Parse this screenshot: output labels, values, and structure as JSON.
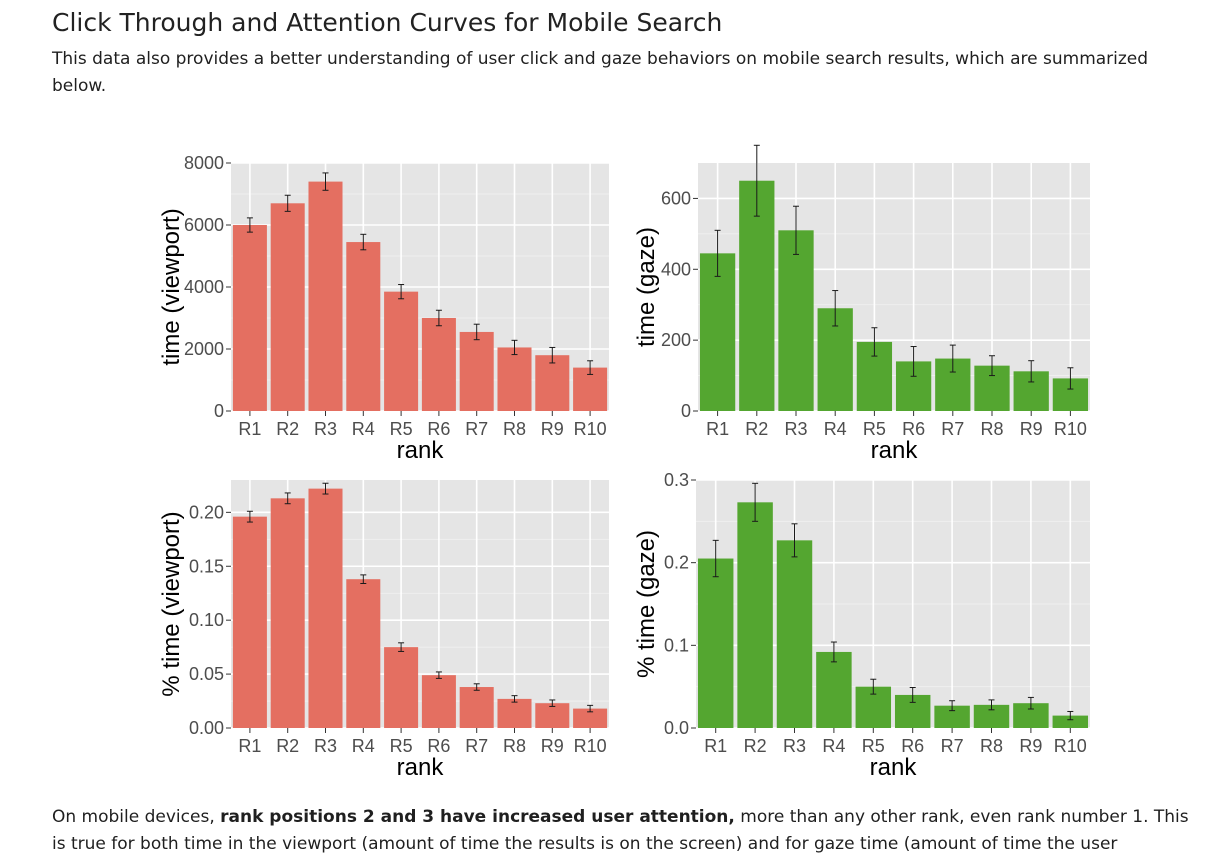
{
  "page": {
    "title": "Click Through and Attention Curves for Mobile Search",
    "intro": "This data also provides a better understanding of user click and gaze behaviors on mobile search results, which are summarized below.",
    "outro": {
      "before": "On mobile devices, ",
      "bold": "rank positions 2 and 3 have increased user attention,",
      "after": " more than any other rank, even rank number 1. This is true for both time in the viewport (amount of time the results is on the screen) and for gaze time (amount of time the user"
    }
  },
  "colors": {
    "viewport_bar": "#e46f61",
    "gaze_bar": "#54a630",
    "panel_bg": "#e5e5e5",
    "grid": "#ffffff"
  },
  "chart_data": [
    {
      "id": "viewport-time",
      "type": "bar",
      "categories": [
        "R1",
        "R2",
        "R3",
        "R4",
        "R5",
        "R6",
        "R7",
        "R8",
        "R9",
        "R10"
      ],
      "values": [
        6000,
        6700,
        7400,
        5450,
        3850,
        3000,
        2550,
        2050,
        1800,
        1400
      ],
      "error": [
        230,
        260,
        280,
        250,
        230,
        250,
        250,
        230,
        250,
        220
      ],
      "xlabel": "rank",
      "ylabel": "time (viewport)",
      "ylim": [
        0,
        8000
      ],
      "yticks": [
        0,
        2000,
        4000,
        6000,
        8000
      ],
      "ytick_labels": [
        "0",
        "2000",
        "4000",
        "6000",
        "8000"
      ],
      "color": "#e46f61"
    },
    {
      "id": "gaze-time",
      "type": "bar",
      "categories": [
        "R1",
        "R2",
        "R3",
        "R4",
        "R5",
        "R6",
        "R7",
        "R8",
        "R9",
        "R10"
      ],
      "values": [
        445,
        650,
        510,
        290,
        195,
        140,
        148,
        128,
        112,
        92
      ],
      "error": [
        65,
        100,
        68,
        50,
        40,
        42,
        38,
        28,
        30,
        30
      ],
      "xlabel": "rank",
      "ylabel": "time (gaze)",
      "ylim": [
        0,
        700
      ],
      "yticks": [
        0,
        200,
        400,
        600
      ],
      "ytick_labels": [
        "0",
        "200",
        "400",
        "600"
      ],
      "color": "#54a630"
    },
    {
      "id": "viewport-percent",
      "type": "bar",
      "categories": [
        "R1",
        "R2",
        "R3",
        "R4",
        "R5",
        "R6",
        "R7",
        "R8",
        "R9",
        "R10"
      ],
      "values": [
        0.196,
        0.213,
        0.222,
        0.138,
        0.075,
        0.049,
        0.038,
        0.027,
        0.023,
        0.018
      ],
      "error": [
        0.005,
        0.005,
        0.005,
        0.004,
        0.004,
        0.003,
        0.003,
        0.003,
        0.003,
        0.003
      ],
      "xlabel": "rank",
      "ylabel": "% time (viewport)",
      "ylim": [
        0,
        0.23
      ],
      "yticks": [
        0,
        0.05,
        0.1,
        0.15,
        0.2
      ],
      "ytick_labels": [
        "0.00",
        "0.05",
        "0.10",
        "0.15",
        "0.20"
      ],
      "color": "#e46f61"
    },
    {
      "id": "gaze-percent",
      "type": "bar",
      "categories": [
        "R1",
        "R2",
        "R3",
        "R4",
        "R5",
        "R6",
        "R7",
        "R8",
        "R9",
        "R10"
      ],
      "values": [
        0.205,
        0.273,
        0.227,
        0.092,
        0.05,
        0.04,
        0.027,
        0.028,
        0.03,
        0.015
      ],
      "error": [
        0.022,
        0.023,
        0.02,
        0.012,
        0.009,
        0.009,
        0.006,
        0.006,
        0.007,
        0.005
      ],
      "xlabel": "rank",
      "ylabel": "% time (gaze)",
      "ylim": [
        0,
        0.3
      ],
      "yticks": [
        0,
        0.1,
        0.2,
        0.3
      ],
      "ytick_labels": [
        "0.0",
        "0.1",
        "0.2",
        "0.3"
      ],
      "color": "#54a630"
    }
  ]
}
